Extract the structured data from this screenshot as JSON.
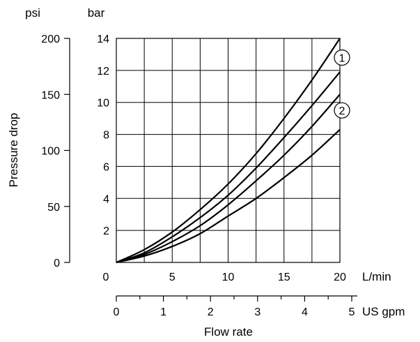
{
  "chart_data": {
    "type": "line",
    "xlabel": "Flow rate",
    "ylabel": "Pressure drop",
    "x_unit": "L/min",
    "x2_unit": "US gpm",
    "y_unit": "bar",
    "y2_unit": "psi",
    "xlim": [
      0,
      20
    ],
    "ylim": [
      0,
      14
    ],
    "x2lim": [
      0,
      5
    ],
    "y2lim": [
      0,
      200
    ],
    "x_ticks": [
      "0",
      "5",
      "10",
      "15",
      "20"
    ],
    "x2_ticks": [
      "0",
      "1",
      "2",
      "3",
      "4",
      "5"
    ],
    "y_ticks": [
      "2",
      "4",
      "6",
      "8",
      "10",
      "12",
      "14"
    ],
    "y2_ticks": [
      "0",
      "50",
      "100",
      "150",
      "200"
    ],
    "grid": true,
    "series": [
      {
        "name": "",
        "x": [
          0,
          2.5,
          5,
          7.5,
          10,
          12.5,
          15,
          17.5,
          20
        ],
        "values": [
          0,
          0.8,
          1.9,
          3.3,
          4.9,
          6.8,
          9.0,
          11.4,
          14.0
        ]
      },
      {
        "name": "",
        "x": [
          0,
          2.5,
          5,
          7.5,
          10,
          12.5,
          15,
          17.5,
          20
        ],
        "values": [
          0,
          0.6,
          1.6,
          2.8,
          4.2,
          5.9,
          7.8,
          9.8,
          11.9
        ]
      },
      {
        "name": "",
        "x": [
          0,
          2.5,
          5,
          7.5,
          10,
          12.5,
          15,
          17.5,
          20
        ],
        "values": [
          0,
          0.5,
          1.3,
          2.3,
          3.6,
          5.1,
          6.7,
          8.5,
          10.5
        ]
      },
      {
        "name": "",
        "x": [
          0,
          2.5,
          5,
          7.5,
          10,
          12.5,
          15,
          17.5,
          20
        ],
        "values": [
          0,
          0.4,
          1.0,
          1.8,
          2.9,
          4.0,
          5.3,
          6.7,
          8.3
        ]
      }
    ],
    "annotations": [
      {
        "text": "1",
        "x": 20,
        "y": 12.8
      },
      {
        "text": "2",
        "x": 20,
        "y": 9.5
      }
    ]
  }
}
